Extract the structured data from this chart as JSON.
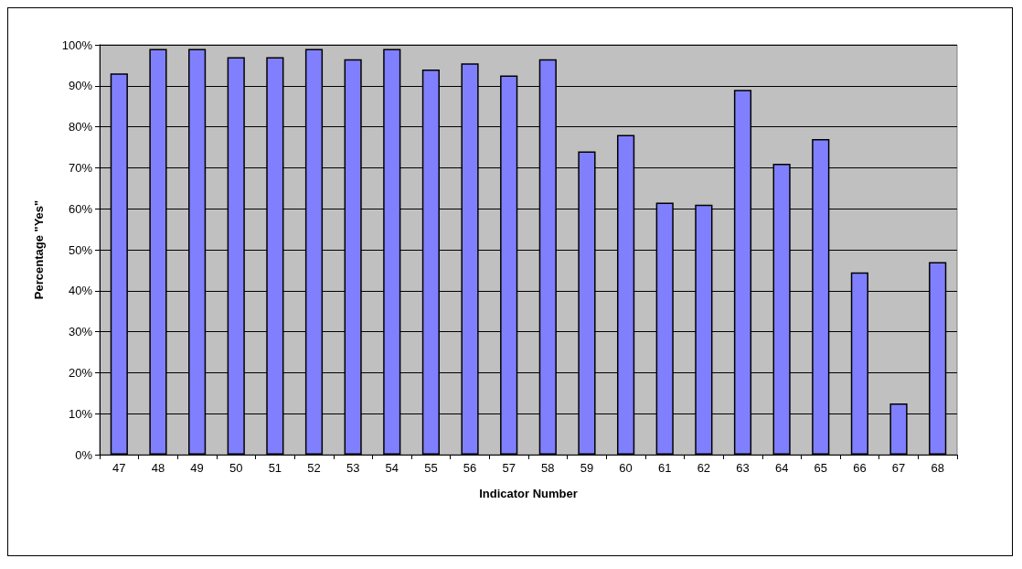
{
  "chart_data": {
    "type": "bar",
    "xlabel": "Indicator Number",
    "ylabel": "Percentage \"Yes\"",
    "categories": [
      "47",
      "48",
      "49",
      "50",
      "51",
      "52",
      "53",
      "54",
      "55",
      "56",
      "57",
      "58",
      "59",
      "60",
      "61",
      "62",
      "63",
      "64",
      "65",
      "66",
      "67",
      "68"
    ],
    "values": [
      93,
      99,
      99,
      97,
      97,
      99,
      96.5,
      99,
      94,
      95.5,
      92.5,
      96.5,
      74,
      78,
      61.5,
      61,
      89,
      71,
      77,
      44.5,
      12.5,
      47
    ],
    "color": "#8080ff",
    "ylim": [
      0,
      100
    ],
    "yticks": [
      {
        "value": 0,
        "label": "0%"
      },
      {
        "value": 10,
        "label": "10%"
      },
      {
        "value": 20,
        "label": "20%"
      },
      {
        "value": 30,
        "label": "30%"
      },
      {
        "value": 40,
        "label": "40%"
      },
      {
        "value": 50,
        "label": "50%"
      },
      {
        "value": 60,
        "label": "60%"
      },
      {
        "value": 70,
        "label": "70%"
      },
      {
        "value": 80,
        "label": "80%"
      },
      {
        "value": 90,
        "label": "90%"
      },
      {
        "value": 100,
        "label": "100%"
      }
    ],
    "grid": "y"
  }
}
